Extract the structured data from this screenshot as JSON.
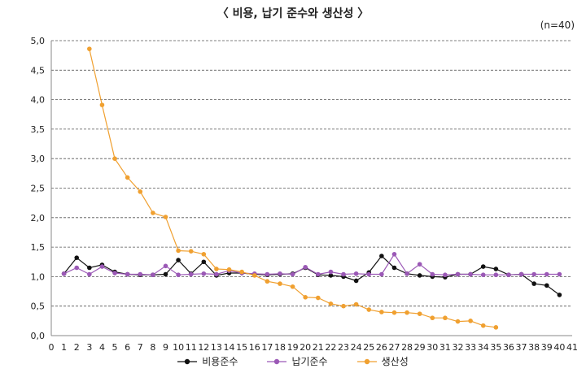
{
  "chart_data": {
    "type": "line",
    "title": "〈 비용, 납기 준수와 생산성 〉",
    "note": "(n=40)",
    "xlim": [
      0,
      41
    ],
    "ylim": [
      0,
      5
    ],
    "x_ticks": [
      0,
      1,
      2,
      3,
      4,
      5,
      6,
      7,
      8,
      9,
      10,
      11,
      12,
      13,
      14,
      15,
      16,
      17,
      18,
      19,
      20,
      21,
      22,
      23,
      24,
      25,
      26,
      27,
      28,
      29,
      30,
      31,
      32,
      33,
      34,
      35,
      36,
      37,
      38,
      39,
      40,
      41
    ],
    "y_ticks": [
      "0,0",
      "0,5",
      "1,0",
      "1,5",
      "2,0",
      "2,5",
      "3,0",
      "3,5",
      "4,0",
      "4,5",
      "5,0"
    ],
    "y_tick_values": [
      0,
      0.5,
      1,
      1.5,
      2,
      2.5,
      3,
      3.5,
      4,
      4.5,
      5
    ],
    "grid": "horizontal dashed",
    "legend_position": "bottom",
    "series": [
      {
        "name": "비용준수",
        "color": "#111111",
        "x": [
          1,
          2,
          3,
          4,
          5,
          6,
          7,
          8,
          9,
          10,
          11,
          12,
          13,
          14,
          15,
          16,
          17,
          18,
          19,
          20,
          21,
          22,
          23,
          24,
          25,
          26,
          27,
          28,
          29,
          30,
          31,
          32,
          33,
          34,
          35,
          36,
          37,
          38,
          39,
          40
        ],
        "values": [
          1.05,
          1.32,
          1.15,
          1.2,
          1.08,
          1.04,
          1.03,
          1.03,
          1.04,
          1.28,
          1.05,
          1.25,
          1.02,
          1.06,
          1.06,
          1.04,
          1.03,
          1.04,
          1.05,
          1.15,
          1.03,
          1.02,
          1.0,
          0.93,
          1.07,
          1.35,
          1.15,
          1.05,
          1.02,
          1.0,
          0.99,
          1.04,
          1.04,
          1.17,
          1.13,
          1.03,
          1.04,
          0.88,
          0.85,
          0.69
        ]
      },
      {
        "name": "납기준수",
        "color": "#9b59b6",
        "x": [
          1,
          2,
          3,
          4,
          5,
          6,
          7,
          8,
          9,
          10,
          11,
          12,
          13,
          14,
          15,
          16,
          17,
          18,
          19,
          20,
          21,
          22,
          23,
          24,
          25,
          26,
          27,
          28,
          29,
          30,
          31,
          32,
          33,
          34,
          35,
          36,
          37,
          38,
          39,
          40
        ],
        "values": [
          1.05,
          1.15,
          1.04,
          1.17,
          1.06,
          1.04,
          1.04,
          1.03,
          1.18,
          1.03,
          1.04,
          1.05,
          1.04,
          1.1,
          1.06,
          1.05,
          1.04,
          1.05,
          1.04,
          1.16,
          1.04,
          1.08,
          1.04,
          1.05,
          1.04,
          1.04,
          1.38,
          1.05,
          1.21,
          1.04,
          1.03,
          1.04,
          1.04,
          1.03,
          1.03,
          1.03,
          1.04,
          1.04,
          1.04,
          1.04
        ]
      },
      {
        "name": "생산성",
        "color": "#f0a030",
        "x": [
          3,
          4,
          5,
          6,
          7,
          8,
          9,
          10,
          11,
          12,
          13,
          14,
          15,
          16,
          17,
          18,
          19,
          20,
          21,
          22,
          23,
          24,
          25,
          26,
          27,
          28,
          29,
          30,
          31,
          32,
          33,
          34,
          35
        ],
        "values": [
          4.86,
          3.91,
          3.0,
          2.68,
          2.44,
          2.08,
          2.01,
          1.44,
          1.43,
          1.38,
          1.13,
          1.12,
          1.08,
          1.02,
          0.92,
          0.88,
          0.83,
          0.65,
          0.64,
          0.54,
          0.5,
          0.53,
          0.44,
          0.4,
          0.39,
          0.39,
          0.37,
          0.3,
          0.3,
          0.24,
          0.25,
          0.17,
          0.14
        ]
      }
    ]
  }
}
